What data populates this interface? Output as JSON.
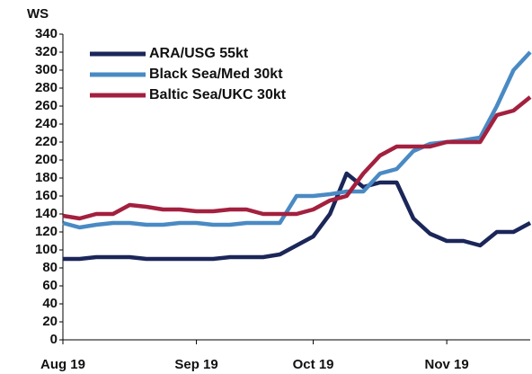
{
  "chart_data": {
    "type": "line",
    "y_label": "WS",
    "categories": [
      "Aug 19",
      null,
      null,
      null,
      null,
      null,
      null,
      null,
      "Sep 19",
      null,
      null,
      null,
      null,
      null,
      null,
      "Oct 19",
      null,
      null,
      null,
      null,
      null,
      null,
      null,
      "Nov 19",
      null,
      null,
      null,
      null,
      null
    ],
    "series": [
      {
        "name": "ARA/USG 55kt",
        "color": "#1b2659",
        "values": [
          90,
          90,
          92,
          92,
          92,
          90,
          90,
          90,
          90,
          90,
          92,
          92,
          92,
          95,
          105,
          115,
          140,
          185,
          170,
          175,
          175,
          135,
          118,
          110,
          110,
          105,
          120,
          120,
          130
        ]
      },
      {
        "name": "Black Sea/Med 30kt",
        "color": "#4a8ac4",
        "values": [
          130,
          125,
          128,
          130,
          130,
          128,
          128,
          130,
          130,
          128,
          128,
          130,
          130,
          130,
          160,
          160,
          162,
          165,
          165,
          185,
          190,
          210,
          218,
          220,
          222,
          225,
          260,
          300,
          320
        ]
      },
      {
        "name": "Baltic Sea/UKC 30kt",
        "color": "#a3203f",
        "values": [
          138,
          135,
          140,
          140,
          150,
          148,
          145,
          145,
          143,
          143,
          145,
          145,
          140,
          140,
          140,
          145,
          155,
          160,
          185,
          205,
          215,
          215,
          215,
          220,
          220,
          220,
          250,
          255,
          270
        ]
      }
    ],
    "ylim": [
      0,
      340
    ],
    "yticks": [
      0,
      20,
      40,
      60,
      80,
      100,
      120,
      140,
      160,
      180,
      200,
      220,
      240,
      260,
      280,
      300,
      320,
      340
    ],
    "legend": "upper-left"
  }
}
